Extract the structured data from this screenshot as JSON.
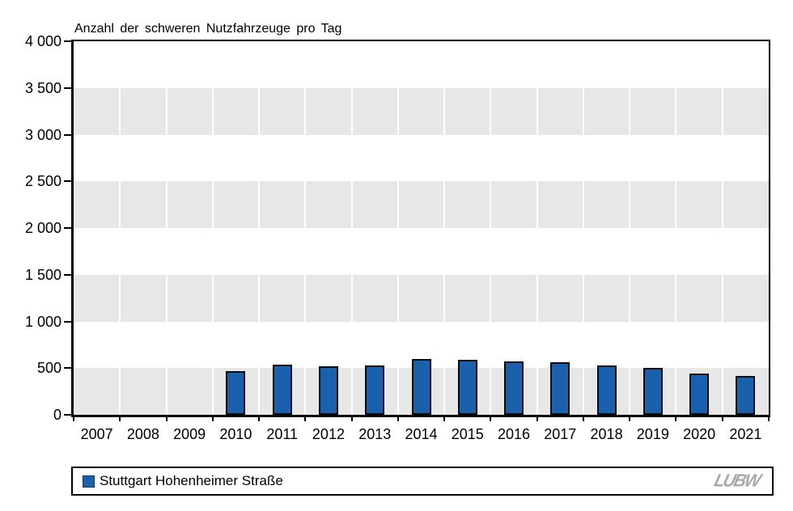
{
  "chart_data": {
    "type": "bar",
    "title": "Anzahl der schweren Nutzfahrzeuge pro Tag",
    "categories": [
      "2007",
      "2008",
      "2009",
      "2010",
      "2011",
      "2012",
      "2013",
      "2014",
      "2015",
      "2016",
      "2017",
      "2018",
      "2019",
      "2020",
      "2021"
    ],
    "series": [
      {
        "name": "Stuttgart Hohenheimer Straße",
        "color": "#1961ac",
        "values": [
          null,
          null,
          null,
          470,
          540,
          520,
          525,
          600,
          590,
          575,
          565,
          525,
          500,
          445,
          415
        ]
      }
    ],
    "xlabel": "",
    "ylabel": "",
    "ylim": [
      0,
      4000
    ],
    "ytick_interval": 500,
    "ytick_labels": [
      "0",
      "500",
      "1 000",
      "1 500",
      "2 000",
      "2 500",
      "3 000",
      "3 500",
      "4 000"
    ],
    "grid": "alternating horizontal gray bands (gray #e7e7e7 for 0-500, 1000-1500, 2000-2500, 3000-3500) with white vertical column separators",
    "legend_position": "bottom"
  },
  "legend": {
    "label": "Stuttgart Hohenheimer Straße"
  },
  "logo": {
    "text": "LUBW"
  },
  "colors": {
    "bar": "#1961ac",
    "bar_border": "#0b0b0b",
    "band_gray": "#e7e7e7",
    "axis": "#000000",
    "logo_gray": "#a9a9a9"
  }
}
